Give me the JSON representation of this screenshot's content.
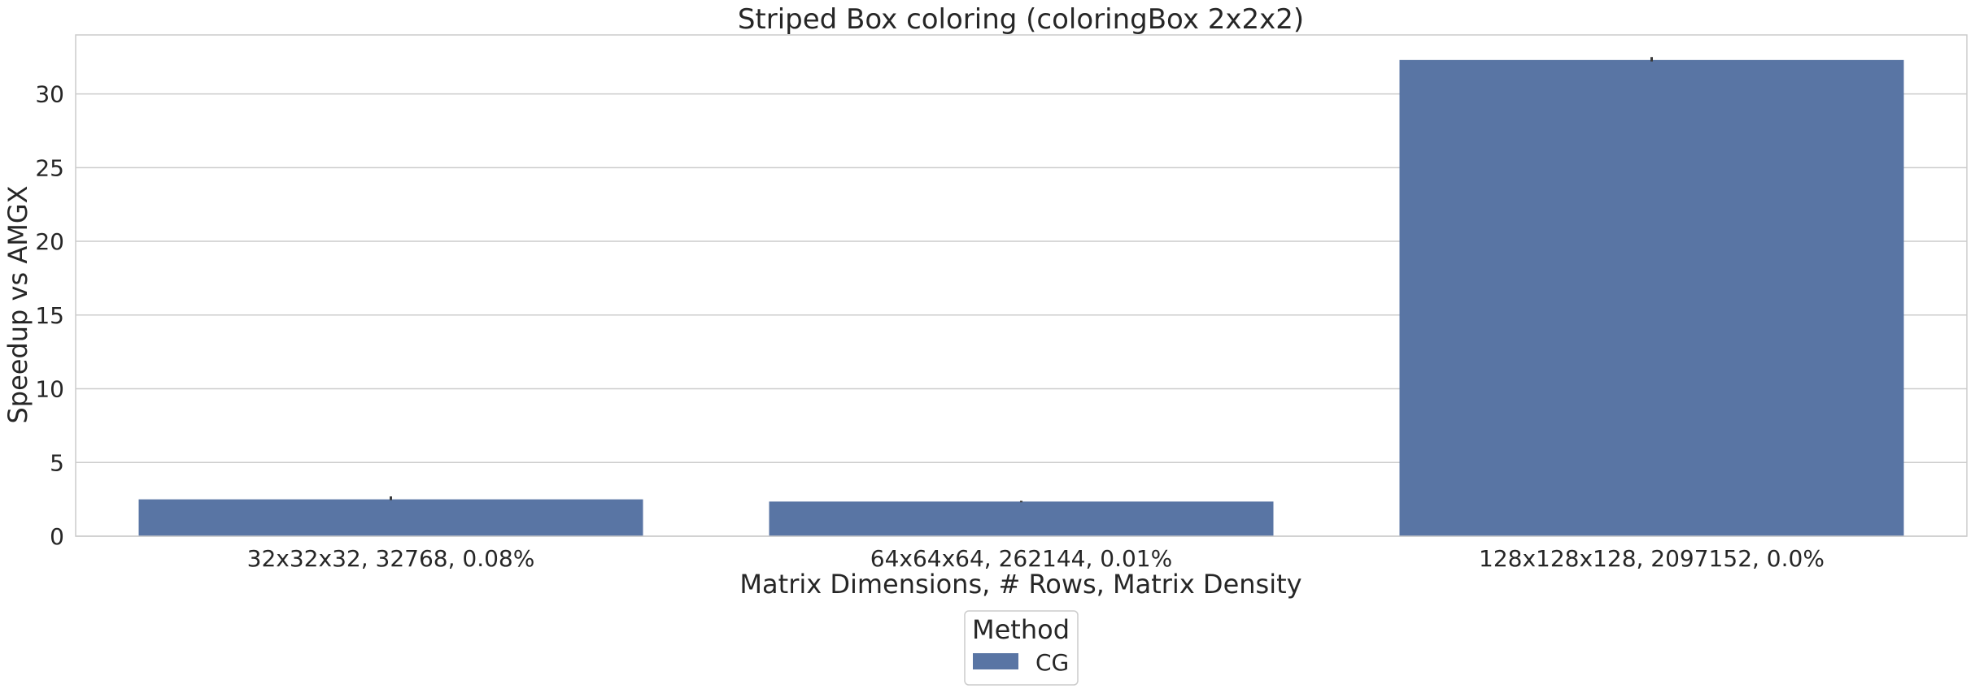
{
  "chart_data": {
    "type": "bar",
    "title": "Striped Box coloring (coloringBox 2x2x2)",
    "xlabel": "Matrix Dimensions, # Rows, Matrix Density",
    "ylabel": "Speedup vs AMGX",
    "categories": [
      "32x32x32, 32768, 0.08%",
      "64x64x64, 262144, 0.01%",
      "128x128x128, 2097152, 0.0%"
    ],
    "series": [
      {
        "name": "CG",
        "color": "#5975a4",
        "values": [
          2.5,
          2.35,
          32.3
        ],
        "error_high": [
          2.7,
          2.4,
          32.5
        ],
        "error_low": [
          2.45,
          2.3,
          32.2
        ]
      }
    ],
    "ylim": [
      0,
      34
    ],
    "yticks": [
      0,
      5,
      10,
      15,
      20,
      25,
      30
    ],
    "grid": true,
    "legend": {
      "title": "Method",
      "position": "bottom-center"
    }
  }
}
